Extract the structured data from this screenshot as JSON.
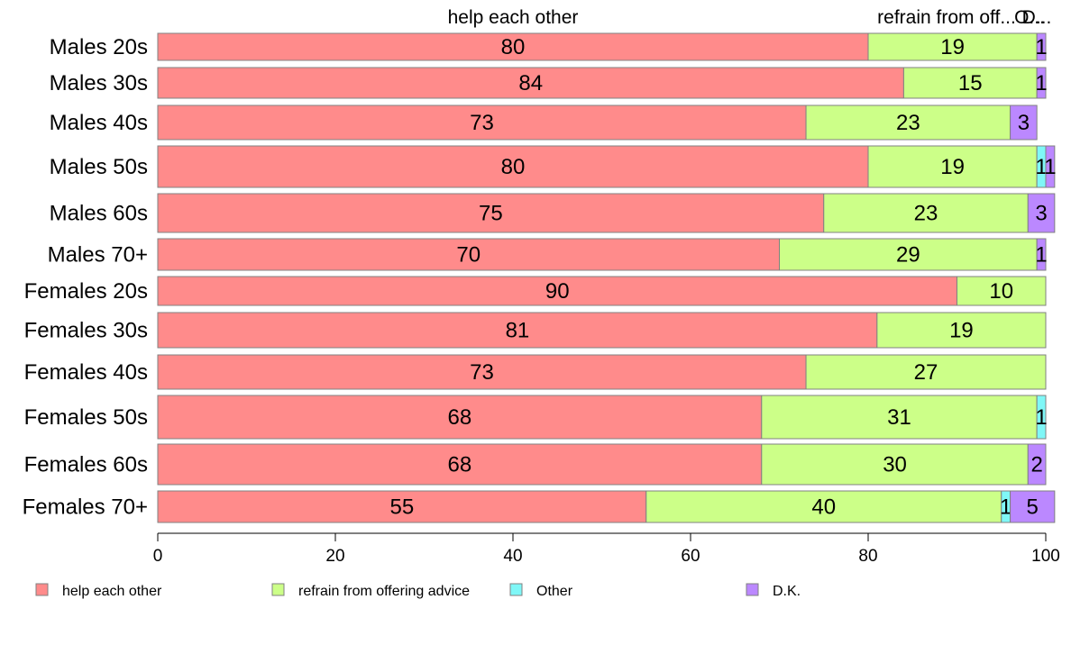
{
  "chart_data": {
    "type": "bar",
    "orientation": "horizontal",
    "stacked": true,
    "categories": [
      "Males 20s",
      "Males 30s",
      "Males 40s",
      "Males 50s",
      "Males 60s",
      "Males 70+",
      "Females 20s",
      "Females 30s",
      "Females 40s",
      "Females 50s",
      "Females 60s",
      "Females 70+"
    ],
    "series": [
      {
        "name": "help each other",
        "color": "#ff8b8b",
        "values": [
          80,
          84,
          73,
          80,
          75,
          70,
          90,
          81,
          73,
          68,
          68,
          55
        ]
      },
      {
        "name": "refrain from offering advice",
        "color": "#ccff88",
        "values": [
          19,
          15,
          23,
          19,
          23,
          29,
          10,
          19,
          27,
          31,
          30,
          40
        ]
      },
      {
        "name": "Other",
        "color": "#7ff7f7",
        "values": [
          0,
          0,
          0,
          1,
          0,
          0,
          0,
          0,
          0,
          1,
          0,
          1
        ]
      },
      {
        "name": "D.K.",
        "color": "#bb88ff",
        "values": [
          1,
          1,
          3,
          1,
          3,
          1,
          0,
          0,
          0,
          0,
          2,
          5
        ]
      }
    ],
    "top_labels": [
      "help each other",
      "refrain from off...",
      "O...",
      "D..."
    ],
    "xlim": [
      0,
      100
    ],
    "xticks": [
      "0",
      "20",
      "40",
      "60",
      "80",
      "100"
    ],
    "legend_position": "bottom",
    "grid": false
  }
}
